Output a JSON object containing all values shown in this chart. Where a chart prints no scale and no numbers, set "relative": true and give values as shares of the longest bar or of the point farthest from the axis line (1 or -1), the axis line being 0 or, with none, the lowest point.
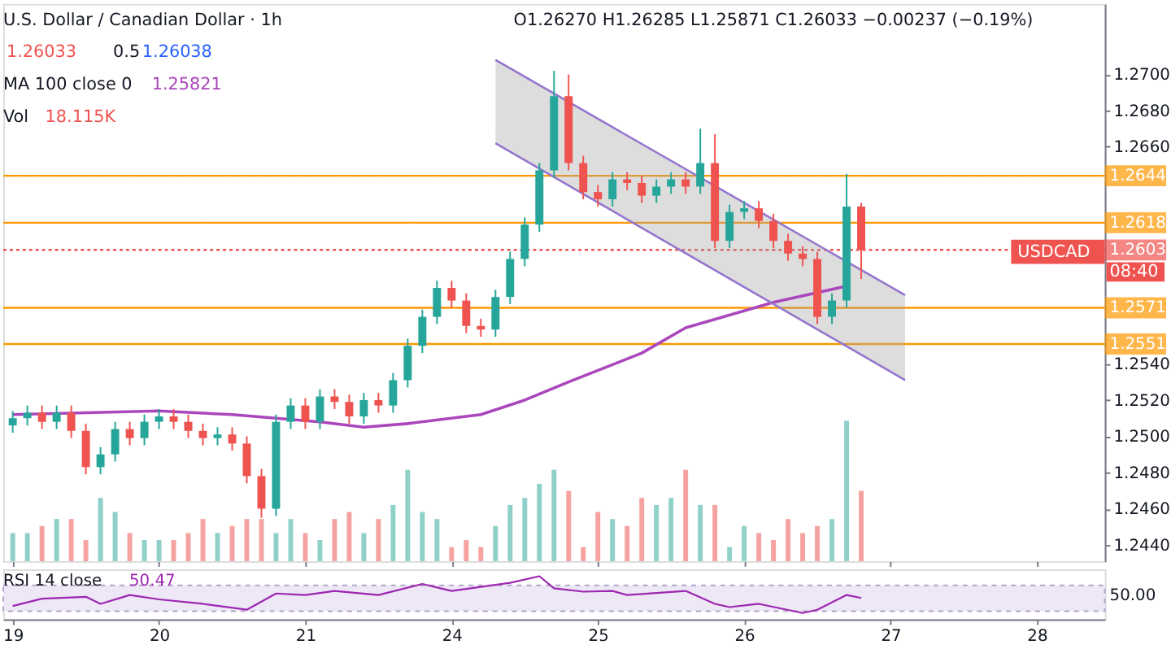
{
  "chart_data": [
    {
      "type": "candlestick",
      "title": "U.S. Dollar / Canadian Dollar · 1h",
      "categories": [
        "19",
        null,
        null,
        null,
        null,
        null,
        null,
        null,
        null,
        null,
        "20",
        null,
        null,
        null,
        null,
        null,
        null,
        null,
        null,
        null,
        "21",
        null,
        null,
        null,
        null,
        null,
        null,
        null,
        null,
        null,
        "24",
        null,
        null,
        null,
        null,
        null,
        null,
        null,
        null,
        null,
        "25",
        null,
        null,
        null,
        null,
        null,
        null,
        null,
        null,
        null,
        "26",
        null,
        null,
        null,
        null,
        null,
        null,
        null,
        null,
        null,
        "27",
        null,
        null,
        null,
        null,
        null,
        null,
        null,
        null,
        null,
        "28",
        null,
        null,
        null,
        null
      ],
      "ohlc": [
        [
          1.2506,
          1.2514,
          1.2502,
          1.251
        ],
        [
          1.251,
          1.2517,
          1.2506,
          1.2513
        ],
        [
          1.2513,
          1.2517,
          1.2504,
          1.2508
        ],
        [
          1.2508,
          1.2517,
          1.2504,
          1.2513
        ],
        [
          1.2513,
          1.2517,
          1.2499,
          1.2503
        ],
        [
          1.2503,
          1.2507,
          1.2479,
          1.2483
        ],
        [
          1.2483,
          1.2494,
          1.2479,
          1.249
        ],
        [
          1.249,
          1.2508,
          1.2486,
          1.2504
        ],
        [
          1.2504,
          1.2508,
          1.2495,
          1.2499
        ],
        [
          1.2499,
          1.2512,
          1.2495,
          1.2508
        ],
        [
          1.2508,
          1.2515,
          1.2504,
          1.2511
        ],
        [
          1.2511,
          1.2515,
          1.2504,
          1.2508
        ],
        [
          1.2508,
          1.2512,
          1.2499,
          1.2503
        ],
        [
          1.2503,
          1.2507,
          1.2495,
          1.2499
        ],
        [
          1.2499,
          1.2505,
          1.2495,
          1.2501
        ],
        [
          1.2501,
          1.2505,
          1.2492,
          1.2496
        ],
        [
          1.2496,
          1.25,
          1.2474,
          1.2478
        ],
        [
          1.2478,
          1.2482,
          1.2455,
          1.246
        ],
        [
          1.246,
          1.2512,
          1.2456,
          1.2508
        ],
        [
          1.2508,
          1.2521,
          1.2504,
          1.2517
        ],
        [
          1.2517,
          1.2521,
          1.2504,
          1.2508
        ],
        [
          1.2508,
          1.2526,
          1.2504,
          1.2522
        ],
        [
          1.2522,
          1.2526,
          1.2515,
          1.2519
        ],
        [
          1.2519,
          1.2523,
          1.2507,
          1.2511
        ],
        [
          1.2511,
          1.2524,
          1.2507,
          1.252
        ],
        [
          1.252,
          1.2524,
          1.2513,
          1.2517
        ],
        [
          1.2517,
          1.2535,
          1.2513,
          1.2531
        ],
        [
          1.2531,
          1.2554,
          1.2527,
          1.255
        ],
        [
          1.255,
          1.257,
          1.2546,
          1.2566
        ],
        [
          1.2566,
          1.2586,
          1.2562,
          1.2582
        ],
        [
          1.2582,
          1.2586,
          1.2571,
          1.2575
        ],
        [
          1.2575,
          1.2579,
          1.2557,
          1.2561
        ],
        [
          1.2561,
          1.2565,
          1.2555,
          1.2559
        ],
        [
          1.2559,
          1.2581,
          1.2555,
          1.2577
        ],
        [
          1.2577,
          1.2602,
          1.2573,
          1.2598
        ],
        [
          1.2598,
          1.2621,
          1.2594,
          1.2617
        ],
        [
          1.2617,
          1.2651,
          1.2613,
          1.2647
        ],
        [
          1.2647,
          1.2702,
          1.2643,
          1.2688
        ],
        [
          1.2688,
          1.27,
          1.2647,
          1.2651
        ],
        [
          1.2651,
          1.2655,
          1.2631,
          1.2635
        ],
        [
          1.2635,
          1.2639,
          1.2627,
          1.2631
        ],
        [
          1.2631,
          1.2646,
          1.2627,
          1.2642
        ],
        [
          1.2642,
          1.2646,
          1.2636,
          1.264
        ],
        [
          1.264,
          1.2644,
          1.2629,
          1.2633
        ],
        [
          1.2633,
          1.2642,
          1.2629,
          1.2638
        ],
        [
          1.2638,
          1.2646,
          1.2634,
          1.2642
        ],
        [
          1.2642,
          1.2646,
          1.2634,
          1.2638
        ],
        [
          1.2638,
          1.267,
          1.2634,
          1.2651
        ],
        [
          1.2651,
          1.2667,
          1.2604,
          1.2608
        ],
        [
          1.2608,
          1.2628,
          1.2604,
          1.2624
        ],
        [
          1.2624,
          1.263,
          1.262,
          1.2626
        ],
        [
          1.2626,
          1.263,
          1.2615,
          1.2619
        ],
        [
          1.2619,
          1.2623,
          1.2604,
          1.2608
        ],
        [
          1.2608,
          1.2612,
          1.2597,
          1.2601
        ],
        [
          1.2601,
          1.2605,
          1.2594,
          1.2598
        ],
        [
          1.2598,
          1.2602,
          1.2562,
          1.2566
        ],
        [
          1.2566,
          1.2579,
          1.2562,
          1.2575
        ],
        [
          1.2575,
          1.2645,
          1.2571,
          1.2627
        ],
        [
          1.2627,
          1.2629,
          1.2587,
          1.2603
        ],
        null,
        null,
        null,
        null,
        null,
        null,
        null,
        null,
        null,
        null,
        null,
        null,
        null,
        null,
        null,
        null
      ],
      "colors": [
        "#26a69a",
        "#26a69a",
        "#ef5350",
        "#26a69a",
        "#ef5350",
        "#ef5350",
        "#26a69a",
        "#26a69a",
        "#ef5350",
        "#26a69a",
        "#26a69a",
        "#ef5350",
        "#ef5350",
        "#ef5350",
        "#26a69a",
        "#ef5350",
        "#ef5350",
        "#ef5350",
        "#26a69a",
        "#26a69a",
        "#ef5350",
        "#26a69a",
        "#ef5350",
        "#ef5350",
        "#26a69a",
        "#ef5350",
        "#26a69a",
        "#26a69a",
        "#26a69a",
        "#26a69a",
        "#ef5350",
        "#ef5350",
        "#ef5350",
        "#26a69a",
        "#26a69a",
        "#26a69a",
        "#26a69a",
        "#26a69a",
        "#ef5350",
        "#ef5350",
        "#ef5350",
        "#26a69a",
        "#ef5350",
        "#ef5350",
        "#26a69a",
        "#26a69a",
        "#ef5350",
        "#26a69a",
        "#ef5350",
        "#26a69a",
        "#26a69a",
        "#ef5350",
        "#ef5350",
        "#ef5350",
        "#ef5350",
        "#ef5350",
        "#26a69a",
        "#26a69a",
        "#ef5350",
        null,
        null,
        null,
        null,
        null,
        null,
        null,
        null,
        null,
        null,
        null,
        null,
        null,
        null,
        null,
        null
      ],
      "series": [
        {
          "type": "line",
          "color": "#ab47bc",
          "values": [
            1.2512,
            null,
            null,
            null,
            null,
            1.2513,
            null,
            null,
            null,
            null,
            1.2514,
            null,
            null,
            null,
            null,
            1.2512,
            null,
            null,
            null,
            null,
            null,
            1.2508,
            null,
            null,
            1.2505,
            null,
            null,
            1.2507,
            null,
            null,
            null,
            null,
            1.2512,
            null,
            null,
            1.252,
            null,
            null,
            1.253,
            null,
            null,
            null,
            null,
            1.2546,
            null,
            null,
            1.256,
            null,
            null,
            null,
            null,
            null,
            1.2574,
            null,
            null,
            null,
            null,
            1.2583,
            null,
            null,
            null,
            null,
            null,
            null,
            null,
            null,
            null,
            null,
            null,
            null,
            null,
            null,
            null,
            null,
            null
          ]
        },
        {
          "type": "line",
          "color": "#9575cd",
          "values": [
            null,
            null,
            null,
            null,
            null,
            null,
            null,
            null,
            null,
            null,
            null,
            null,
            null,
            null,
            null,
            null,
            null,
            null,
            null,
            null,
            null,
            null,
            null,
            null,
            null,
            null,
            null,
            null,
            null,
            null,
            null,
            null,
            null,
            1.2708,
            null,
            null,
            null,
            null,
            null,
            null,
            null,
            null,
            null,
            null,
            null,
            null,
            null,
            null,
            null,
            null,
            null,
            null,
            null,
            null,
            null,
            null,
            null,
            null,
            null,
            null,
            null,
            1.2578,
            null,
            null,
            null,
            null,
            null,
            null,
            null,
            null,
            null,
            null,
            null,
            null,
            null
          ],
          "lower": [
            null,
            null,
            null,
            null,
            null,
            null,
            null,
            null,
            null,
            null,
            null,
            null,
            null,
            null,
            null,
            null,
            null,
            null,
            null,
            null,
            null,
            null,
            null,
            null,
            null,
            null,
            null,
            null,
            null,
            null,
            null,
            null,
            null,
            1.2662,
            null,
            null,
            null,
            null,
            null,
            null,
            null,
            null,
            null,
            null,
            null,
            null,
            null,
            null,
            null,
            null,
            null,
            null,
            null,
            null,
            null,
            null,
            null,
            null,
            null,
            null,
            null,
            1.2531,
            null,
            null,
            null,
            null,
            null,
            null,
            null,
            null,
            null,
            null,
            null,
            null,
            null
          ],
          "upper": [
            null,
            null,
            null,
            null,
            null,
            null,
            null,
            null,
            null,
            null,
            null,
            null,
            null,
            null,
            null,
            null,
            null,
            null,
            null,
            null,
            null,
            null,
            null,
            null,
            null,
            null,
            null,
            null,
            null,
            null,
            null,
            null,
            null,
            1.2708,
            null,
            null,
            null,
            null,
            null,
            null,
            null,
            null,
            null,
            null,
            null,
            null,
            null,
            null,
            null,
            null,
            null,
            null,
            null,
            null,
            null,
            null,
            null,
            null,
            null,
            null,
            null,
            1.2578,
            null,
            null,
            null,
            null,
            null,
            null,
            null,
            null,
            null,
            null,
            null,
            null,
            null
          ]
        },
        {
          "type": "line",
          "color": "#9575cd",
          "values": [
            null,
            null,
            null,
            null,
            null,
            null,
            null,
            null,
            null,
            null,
            null,
            null,
            null,
            null,
            null,
            null,
            null,
            null,
            null,
            null,
            null,
            null,
            null,
            null,
            null,
            null,
            null,
            null,
            null,
            null,
            null,
            null,
            null,
            1.2662,
            null,
            null,
            null,
            null,
            null,
            null,
            null,
            null,
            null,
            null,
            null,
            null,
            null,
            null,
            null,
            null,
            null,
            null,
            null,
            null,
            null,
            null,
            null,
            null,
            null,
            null,
            null,
            1.2531,
            null,
            null,
            null,
            null,
            null,
            null,
            null,
            null,
            null,
            null,
            null,
            null,
            null
          ]
        }
      ],
      "ylim": [
        1.2431,
        1.2739
      ],
      "yticks": [
        {
          "value": 1.244,
          "label": "1.2440"
        },
        {
          "value": 1.246,
          "label": "1.2460"
        },
        {
          "value": 1.248,
          "label": "1.2480"
        },
        {
          "value": 1.25,
          "label": "1.2500"
        },
        {
          "value": 1.252,
          "label": "1.2520"
        },
        {
          "value": 1.254,
          "label": "1.2540"
        },
        {
          "value": 1.266,
          "label": "1.2660"
        },
        {
          "value": 1.268,
          "label": "1.2680"
        },
        {
          "value": 1.27,
          "label": "1.2700"
        }
      ],
      "tick_labels": "y",
      "ref_lines": [
        {
          "axis": "y",
          "value": 1.2644,
          "label": "1.2644",
          "color": "#ff9800"
        },
        {
          "axis": "y",
          "value": 1.2618,
          "label": "1.2618",
          "color": "#ff9800"
        },
        {
          "axis": "y",
          "value": 1.2603,
          "label": "1.2603",
          "color": "#ef5350",
          "line_style": "dotted"
        },
        {
          "axis": "y",
          "value": 1.2571,
          "label": "1.2571",
          "color": "#ff9800"
        },
        {
          "axis": "y",
          "value": 1.2551,
          "label": "1.2551",
          "color": "#ff9800"
        }
      ],
      "annotations": [
        "O1.26270 H1.26285 L1.25871 C1.26033 −0.00237 (−0.19%)",
        "1.26033",
        "0.5",
        "1.26038",
        "MA 100 close 0",
        "1.25821",
        "USDCAD",
        "08:40"
      ]
    },
    {
      "type": "bar",
      "relative": true,
      "title": "Vol",
      "annotations": [
        "18.115K"
      ],
      "tick_labels": false,
      "categories": [
        "19",
        null,
        null,
        null,
        null,
        null,
        null,
        null,
        null,
        null,
        "20",
        null,
        null,
        null,
        null,
        null,
        null,
        null,
        null,
        null,
        "21",
        null,
        null,
        null,
        null,
        null,
        null,
        null,
        null,
        null,
        "24",
        null,
        null,
        null,
        null,
        null,
        null,
        null,
        null,
        null,
        "25",
        null,
        null,
        null,
        null,
        null,
        null,
        null,
        null,
        null,
        "26",
        null,
        null,
        null,
        null,
        null,
        null,
        null,
        null,
        null,
        "27",
        null,
        null,
        null,
        null,
        null,
        null,
        null,
        null,
        null,
        "28",
        null,
        null,
        null,
        null
      ],
      "values": [
        0.2,
        0.2,
        0.25,
        0.3,
        0.3,
        0.15,
        0.45,
        0.35,
        0.2,
        0.15,
        0.15,
        0.15,
        0.2,
        0.3,
        0.2,
        0.25,
        0.3,
        0.3,
        0.2,
        0.3,
        0.2,
        0.15,
        0.3,
        0.35,
        0.2,
        0.3,
        0.4,
        0.65,
        0.35,
        0.3,
        0.1,
        0.15,
        0.1,
        0.25,
        0.4,
        0.45,
        0.55,
        0.65,
        0.5,
        0.1,
        0.35,
        0.3,
        0.25,
        0.45,
        0.4,
        0.45,
        0.65,
        0.4,
        0.4,
        0.1,
        0.25,
        0.2,
        0.15,
        0.3,
        0.2,
        0.25,
        0.3,
        1.0,
        0.5,
        null,
        null,
        null,
        null,
        null,
        null,
        null,
        null,
        null,
        null,
        null,
        null,
        null,
        null,
        null,
        null
      ],
      "colors": [
        "#8fd1c9",
        "#8fd1c9",
        "#f5a3a0",
        "#8fd1c9",
        "#f5a3a0",
        "#f5a3a0",
        "#8fd1c9",
        "#8fd1c9",
        "#f5a3a0",
        "#8fd1c9",
        "#8fd1c9",
        "#f5a3a0",
        "#f5a3a0",
        "#f5a3a0",
        "#8fd1c9",
        "#f5a3a0",
        "#f5a3a0",
        "#f5a3a0",
        "#8fd1c9",
        "#8fd1c9",
        "#f5a3a0",
        "#8fd1c9",
        "#f5a3a0",
        "#f5a3a0",
        "#8fd1c9",
        "#f5a3a0",
        "#8fd1c9",
        "#8fd1c9",
        "#8fd1c9",
        "#8fd1c9",
        "#f5a3a0",
        "#f5a3a0",
        "#f5a3a0",
        "#8fd1c9",
        "#8fd1c9",
        "#8fd1c9",
        "#8fd1c9",
        "#8fd1c9",
        "#f5a3a0",
        "#f5a3a0",
        "#f5a3a0",
        "#8fd1c9",
        "#f5a3a0",
        "#f5a3a0",
        "#8fd1c9",
        "#8fd1c9",
        "#f5a3a0",
        "#8fd1c9",
        "#f5a3a0",
        "#8fd1c9",
        "#8fd1c9",
        "#f5a3a0",
        "#f5a3a0",
        "#f5a3a0",
        "#f5a3a0",
        "#f5a3a0",
        "#8fd1c9",
        "#8fd1c9",
        "#f5a3a0",
        null,
        null,
        null,
        null,
        null,
        null,
        null,
        null,
        null,
        null,
        null,
        null,
        null,
        null,
        null,
        null
      ]
    },
    {
      "type": "line",
      "relative": true,
      "title": "RSI 14 close",
      "annotations": [
        "50.47",
        "50.00"
      ],
      "categories": [
        "19",
        null,
        null,
        null,
        null,
        null,
        null,
        null,
        null,
        null,
        "20",
        null,
        null,
        null,
        null,
        null,
        null,
        null,
        null,
        null,
        "21",
        null,
        null,
        null,
        null,
        null,
        null,
        null,
        null,
        null,
        "24",
        null,
        null,
        null,
        null,
        null,
        null,
        null,
        null,
        null,
        "25",
        null,
        null,
        null,
        null,
        null,
        null,
        null,
        null,
        null,
        "26",
        null,
        null,
        null,
        null,
        null,
        null,
        null,
        null,
        null,
        "27",
        null,
        null,
        null,
        null,
        null,
        null,
        null,
        null,
        null,
        "28",
        null,
        null,
        null,
        null
      ],
      "series": [
        {
          "color": "#9c27b0",
          "values": [
            0.19,
            null,
            0.39,
            null,
            null,
            0.44,
            0.25,
            null,
            0.49,
            null,
            0.37,
            null,
            null,
            0.25,
            null,
            null,
            0.09,
            null,
            0.53,
            null,
            0.49,
            null,
            0.6,
            null,
            null,
            0.49,
            null,
            null,
            0.79,
            null,
            0.6,
            null,
            null,
            null,
            0.82,
            null,
            1,
            0.67,
            null,
            0.58,
            null,
            0.6,
            0.49,
            null,
            null,
            null,
            0.6,
            null,
            0.25,
            0.16,
            null,
            0.25,
            null,
            null,
            0,
            0.09,
            null,
            0.49,
            0.41,
            null,
            null,
            null,
            null,
            null,
            null,
            null,
            null,
            null,
            null,
            null,
            null,
            null,
            null,
            null,
            null
          ]
        }
      ],
      "bands": [
        {
          "axis": "y",
          "from": 0.05,
          "to": 0.75,
          "color": "#ede7f6"
        }
      ]
    }
  ]
}
